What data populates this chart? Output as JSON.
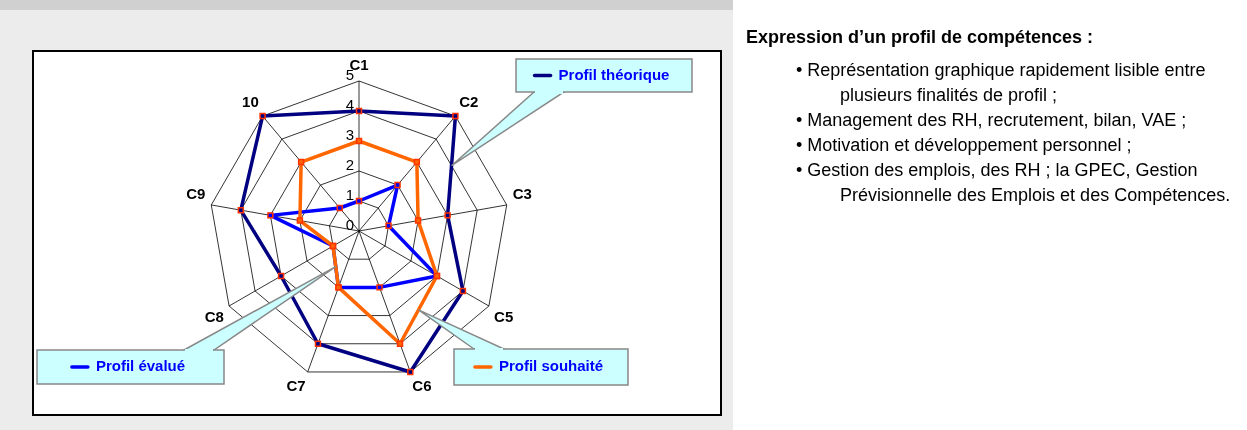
{
  "chart_data": {
    "type": "radar",
    "title": "Expression d’un profil de compétences :",
    "categories": [
      "C1",
      "C2",
      "C3",
      "C5",
      "C6",
      "C7",
      "C8",
      "C9",
      "10"
    ],
    "series": [
      {
        "name": "Profil théorique",
        "color": "#000080",
        "values": [
          4,
          5,
          3,
          4,
          5,
          4,
          3,
          4,
          5
        ]
      },
      {
        "name": "Profil souhaité",
        "color": "#ff6600",
        "values": [
          3,
          3,
          2,
          3,
          4,
          2,
          1,
          2,
          3
        ]
      },
      {
        "name": "Profil évalué",
        "color": "#0000ff",
        "values": [
          1,
          2,
          1,
          3,
          2,
          2,
          1,
          3,
          1
        ]
      }
    ],
    "ylim": [
      0,
      5
    ],
    "yticks": [
      0,
      1,
      2,
      3,
      4,
      5
    ],
    "grid": true,
    "marker": "square",
    "legend": "top right",
    "annotations": [
      "• Représentation graphique rapidement lisible entre plusieurs finalités de profil ;",
      "• Management des RH, recrutement, bilan, VAE ;",
      "• Motivation et développement personnel ;",
      "• Gestion des emplois, des RH ; la GPEC, Gestion Prévisionnelle des Emplois et des Compétences."
    ]
  }
}
